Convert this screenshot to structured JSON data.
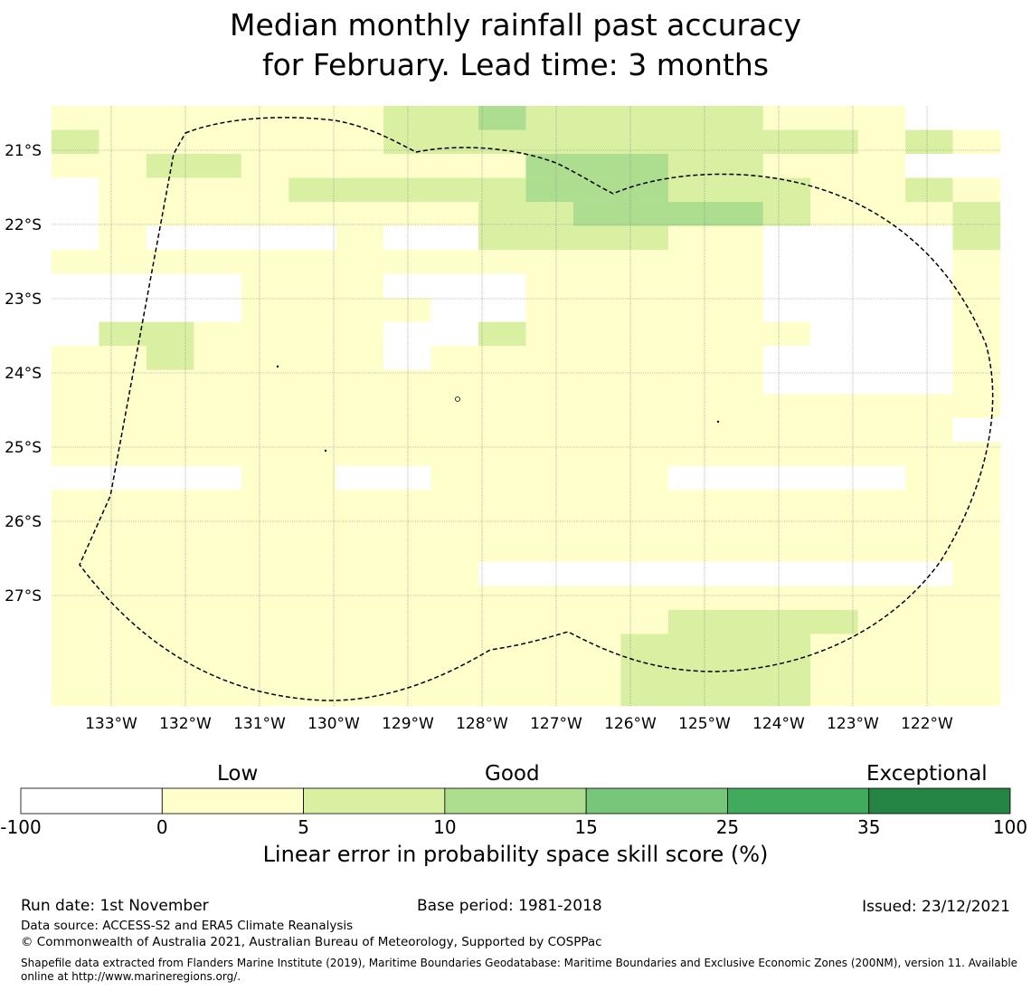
{
  "title": {
    "line1": "Median monthly rainfall past accuracy",
    "line2": "for February. Lead time: 3 months"
  },
  "map": {
    "lat_labels": [
      "21°S",
      "22°S",
      "23°S",
      "24°S",
      "25°S",
      "26°S",
      "27°S"
    ],
    "lon_labels": [
      "133°W",
      "132°W",
      "131°W",
      "130°W",
      "129°W",
      "128°W",
      "127°W",
      "126°W",
      "125°W",
      "124°W",
      "123°W",
      "122°W"
    ],
    "grid_codes": [
      "11111112232222211100",
      "21111112222222222121",
      "11221111113332211100",
      "01111222223332221121",
      "01111111122333321112",
      "01000010022221100002",
      "11111111111111100001",
      "00001110001111100001",
      "00001111001111100001",
      "02211110021111110001",
      "11211110111111100001",
      "11111111111111100001",
      "11111111111111111111",
      "11111111111111111110",
      "11111111111111111111",
      "00001100111110000011",
      "11111111111111111111",
      "11111111111111111111",
      "11111111111111111111",
      "11111111100000000001",
      "11111111111111111111",
      "11111111111112222111",
      "11111111111122221111",
      "11111111111122221111",
      "11111111111122221111"
    ],
    "colors": [
      "#ffffff",
      "#ffffcc",
      "#d9f0a3",
      "#addd8e"
    ]
  },
  "colorbar": {
    "labels": {
      "low": "Low",
      "good": "Good",
      "exceptional": "Exceptional"
    },
    "ticks": [
      "-100",
      "0",
      "5",
      "10",
      "15",
      "25",
      "35",
      "100"
    ],
    "colors": [
      "#ffffff",
      "#ffffcc",
      "#d9f0a3",
      "#addd8e",
      "#78c679",
      "#41ab5d",
      "#238443"
    ],
    "xlabel": "Linear error in probability space skill score (%)"
  },
  "footer": {
    "run_date": "Run date: 1st November",
    "base_period": "Base period: 1981-2018",
    "issued": "Issued: 23/12/2021",
    "data_source": "Data source: ACCESS-S2 and ERA5 Climate Reanalysis",
    "copyright": "© Commonwealth of Australia 2021, Australian Bureau of Meteorology, Supported by COSPPac",
    "shapefile": "Shapefile data extracted from Flanders Marine Institute (2019), Maritime Boundaries Geodatabase: Maritime Boundaries and Exclusive Economic Zones (200NM), version 11. Available online at http://www.marineregions.org/."
  }
}
